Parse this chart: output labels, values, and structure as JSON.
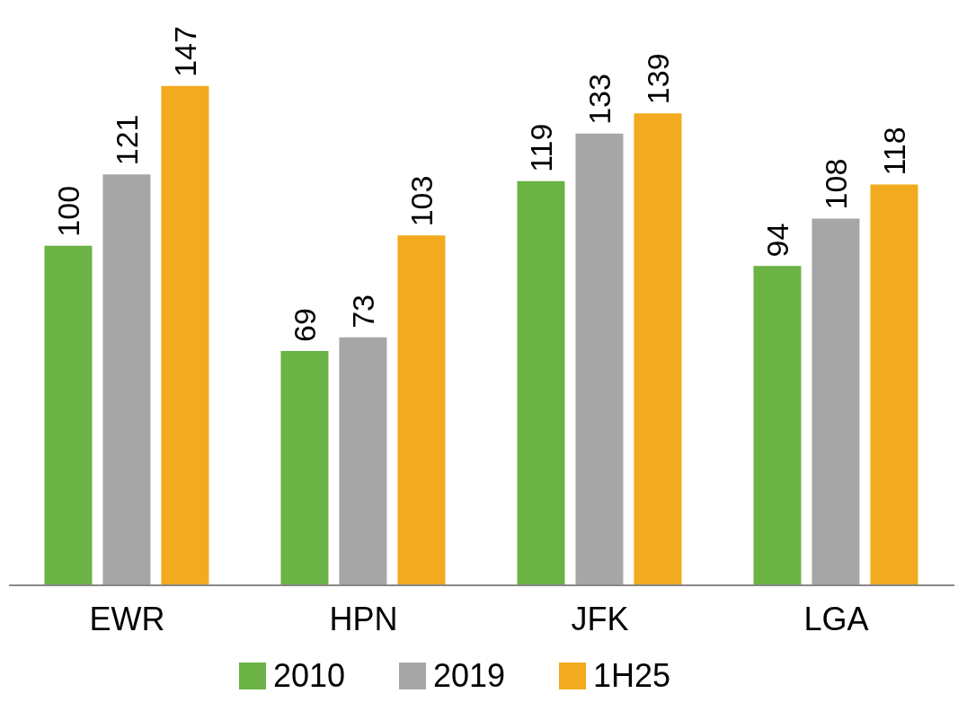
{
  "chart_data": {
    "type": "bar",
    "categories": [
      "EWR",
      "HPN",
      "JFK",
      "LGA"
    ],
    "series": [
      {
        "name": "2010",
        "color": "#6ab344",
        "values": [
          100,
          69,
          119,
          94
        ]
      },
      {
        "name": "2019",
        "color": "#a6a6a6",
        "values": [
          121,
          73,
          133,
          108
        ]
      },
      {
        "name": "1H25",
        "color": "#f2aa1e",
        "values": [
          147,
          103,
          139,
          118
        ]
      }
    ],
    "data_labels": true,
    "legend": "bottom",
    "grid": false
  }
}
